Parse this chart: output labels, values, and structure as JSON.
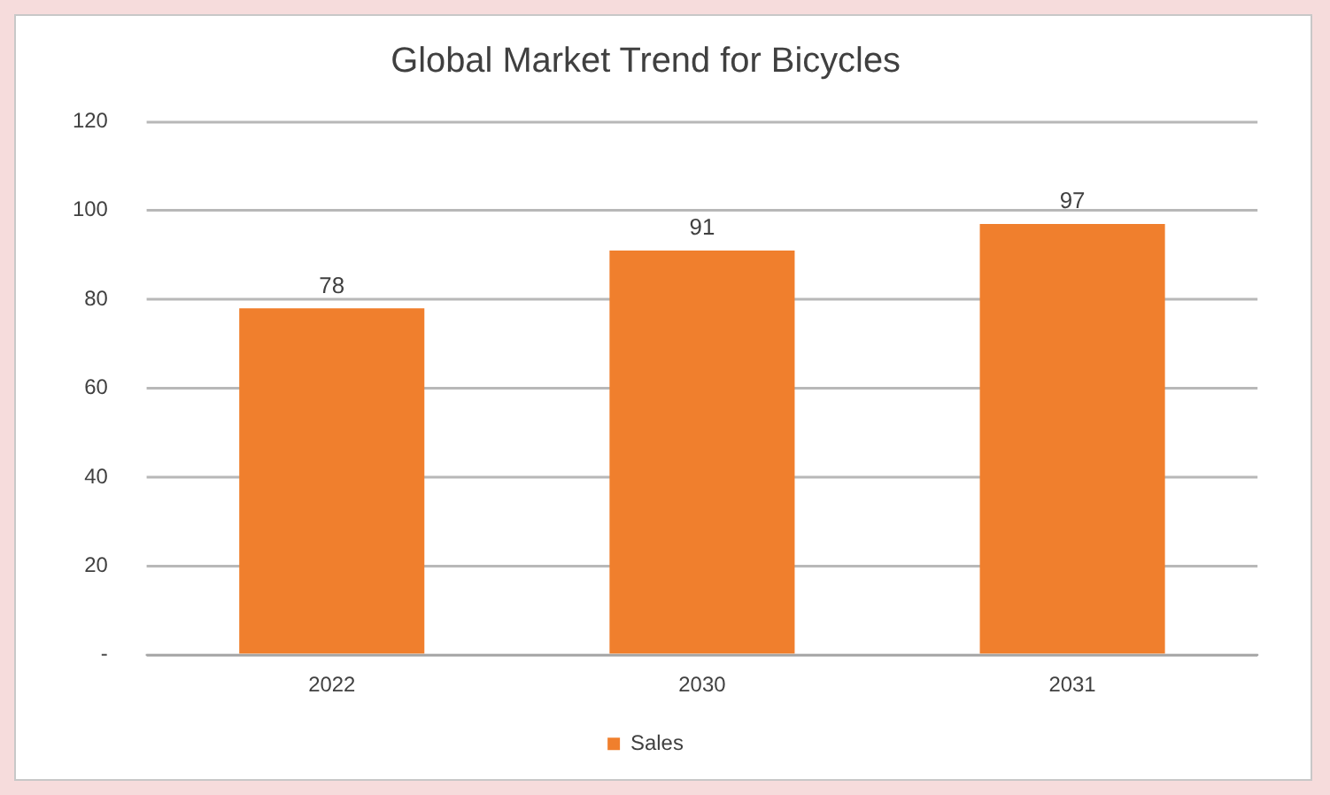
{
  "chart_data": {
    "type": "bar",
    "title": "Global Market Trend for Bicycles",
    "categories": [
      "2022",
      "2030",
      "2031"
    ],
    "series": [
      {
        "name": "Sales",
        "color": "#f07f2d",
        "values": [
          78,
          91,
          97
        ]
      }
    ],
    "ylim": [
      0,
      120
    ],
    "yticks": [
      {
        "value": 0,
        "label": "-"
      },
      20,
      40,
      60,
      80,
      100,
      120
    ],
    "grid": "y",
    "legend": "bottom",
    "data_labels": true
  }
}
